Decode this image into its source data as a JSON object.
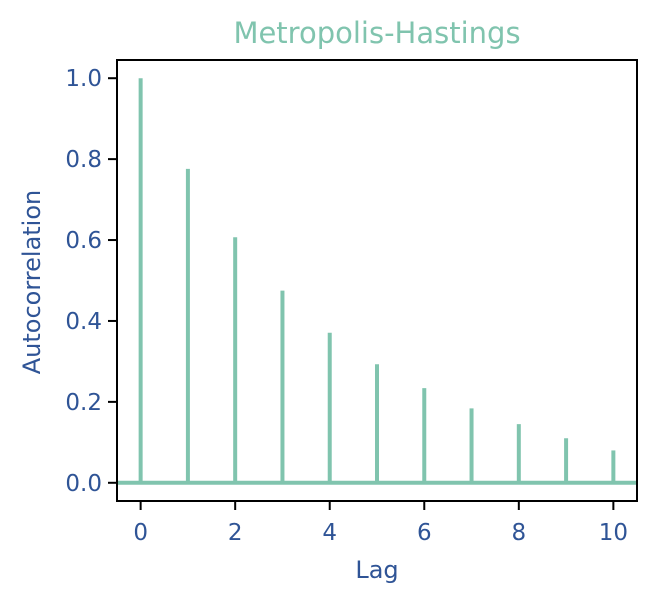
{
  "chart_data": {
    "type": "bar",
    "subtype": "stem",
    "title": "Metropolis-Hastings",
    "xlabel": "Lag",
    "ylabel": "Autocorrelation",
    "x": [
      0,
      1,
      2,
      3,
      4,
      5,
      6,
      7,
      8,
      9,
      10
    ],
    "values": [
      1.0,
      0.776,
      0.607,
      0.475,
      0.371,
      0.293,
      0.234,
      0.184,
      0.145,
      0.11,
      0.08
    ],
    "xlim": [
      -0.5,
      10.5
    ],
    "ylim": [
      -0.045,
      1.045
    ],
    "xticks": [
      0,
      2,
      4,
      6,
      8,
      10
    ],
    "yticks": [
      0.0,
      0.2,
      0.4,
      0.6,
      0.8,
      1.0
    ],
    "xtick_labels": [
      "0",
      "2",
      "4",
      "6",
      "8",
      "10"
    ],
    "ytick_labels": [
      "0.0",
      "0.2",
      "0.4",
      "0.6",
      "0.8",
      "1.0"
    ],
    "baseline": 0.0,
    "grid": false,
    "legend": "none",
    "colors": {
      "series": "#80c4ae",
      "title": "#80c4ae",
      "labels": "#2f5496",
      "axes": "#000000"
    }
  }
}
